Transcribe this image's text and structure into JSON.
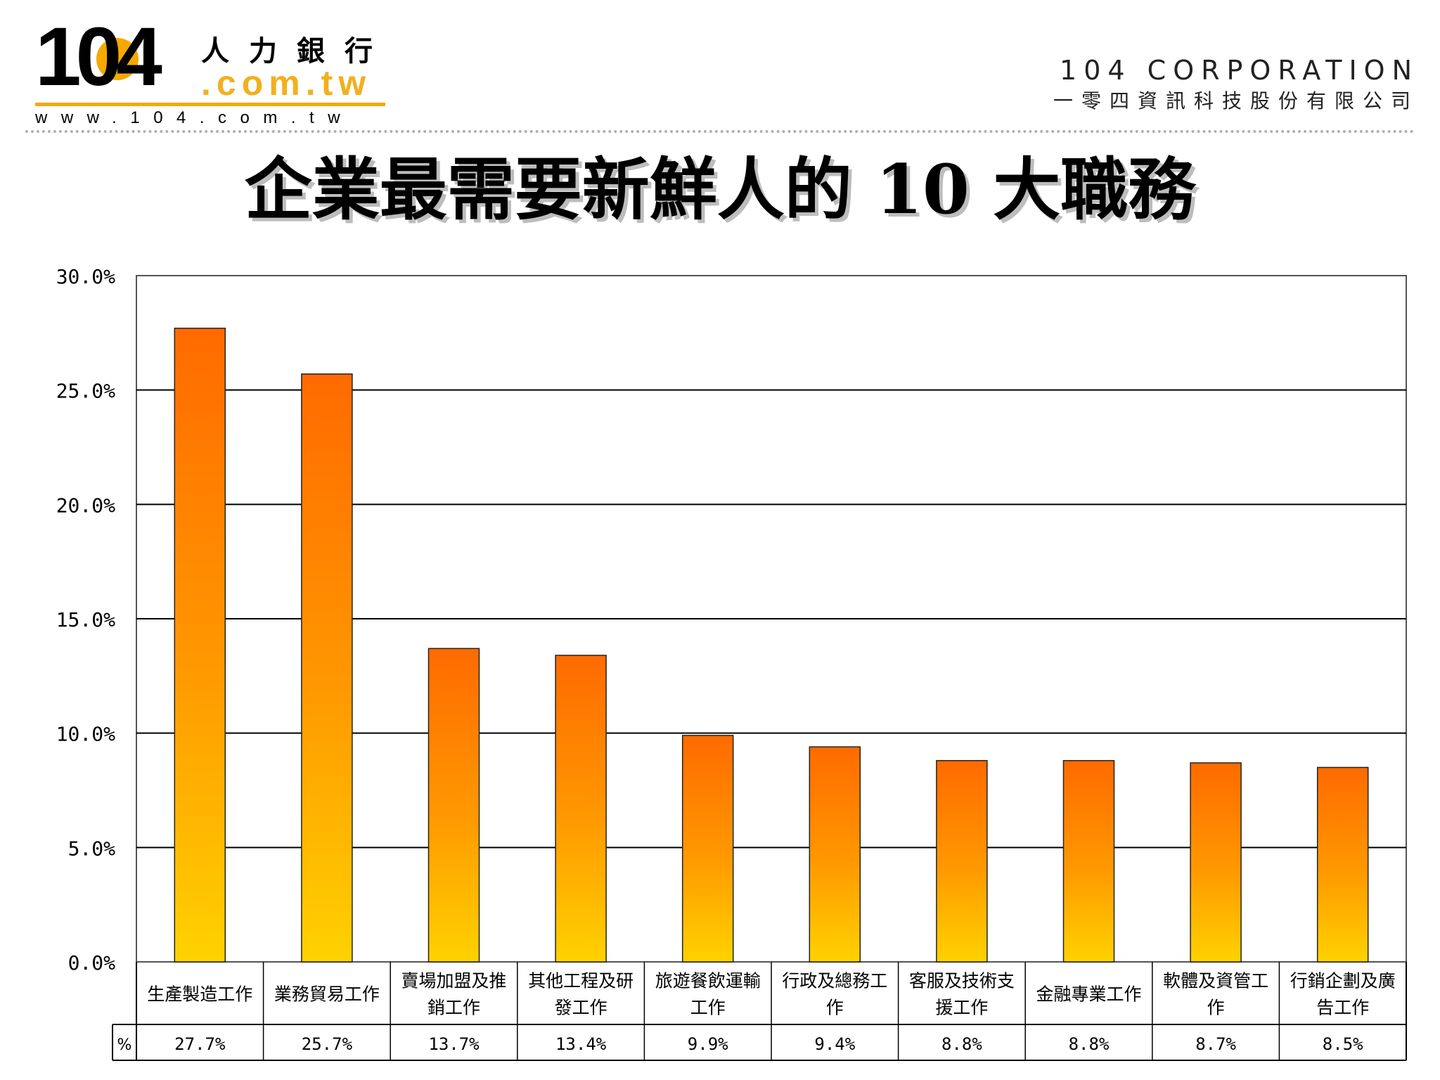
{
  "header": {
    "logo_number": "104",
    "logo_cn": "人力銀行",
    "logo_domain": ".com.tw",
    "logo_url": "www.104.com.tw",
    "corp_en": "104 CORPORATION",
    "corp_cn": "一零四資訊科技股份有限公司"
  },
  "colors": {
    "bar_top": "#ff6a00",
    "bar_bottom": "#ffd200",
    "logo_accent": "#f5a800"
  },
  "chart_data": {
    "type": "bar",
    "title": "企業最需要新鮮人的 10 大職務",
    "xlabel": "",
    "ylabel": "",
    "ylim": [
      0,
      30
    ],
    "yticks": [
      "0.0%",
      "5.0%",
      "10.0%",
      "15.0%",
      "20.0%",
      "25.0%",
      "30.0%"
    ],
    "grid": true,
    "categories": [
      [
        "生產製造工作"
      ],
      [
        "業務貿易工作"
      ],
      [
        "賣場加盟及推",
        "銷工作"
      ],
      [
        "其他工程及研",
        "發工作"
      ],
      [
        "旅遊餐飲運輸",
        "工作"
      ],
      [
        "行政及總務工",
        "作"
      ],
      [
        "客服及技術支",
        "援工作"
      ],
      [
        "金融專業工作"
      ],
      [
        "軟體及資管工",
        "作"
      ],
      [
        "行銷企劃及廣",
        "告工作"
      ]
    ],
    "values": [
      27.7,
      25.7,
      13.7,
      13.4,
      9.9,
      9.4,
      8.8,
      8.8,
      8.7,
      8.5
    ],
    "table_row_label": "%",
    "value_labels": [
      "27.7%",
      "25.7%",
      "13.7%",
      "13.4%",
      "9.9%",
      "9.4%",
      "8.8%",
      "8.8%",
      "8.7%",
      "8.5%"
    ]
  }
}
